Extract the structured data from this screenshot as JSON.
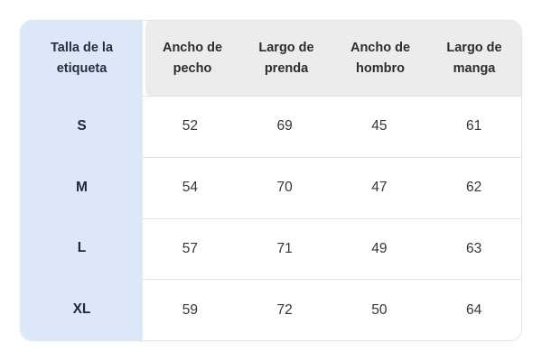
{
  "table": {
    "corner_header": "Talla de la etiqueta",
    "column_headers": [
      "Ancho de pecho",
      "Largo de prenda",
      "Ancho de hombro",
      "Largo de manga"
    ],
    "rows": [
      {
        "size": "S",
        "values": [
          52,
          69,
          45,
          61
        ]
      },
      {
        "size": "M",
        "values": [
          54,
          70,
          47,
          62
        ]
      },
      {
        "size": "L",
        "values": [
          57,
          71,
          49,
          63
        ]
      },
      {
        "size": "XL",
        "values": [
          59,
          72,
          50,
          64
        ]
      }
    ]
  },
  "colors": {
    "size_column_bg": "#dce8f8",
    "header_bg": "#ececec",
    "divider": "#e2e2e2",
    "card_border": "#e4e4e4",
    "size_label_text": "#1c2a3a",
    "header_text": "#2d2d2d",
    "value_text": "#363636",
    "page_bg": "#ffffff"
  },
  "chart_data": {
    "type": "table",
    "columns": [
      "Talla de la etiqueta",
      "Ancho de pecho",
      "Largo de prenda",
      "Ancho de hombro",
      "Largo de manga"
    ],
    "rows": [
      [
        "S",
        52,
        69,
        45,
        61
      ],
      [
        "M",
        54,
        70,
        47,
        62
      ],
      [
        "L",
        57,
        71,
        49,
        63
      ],
      [
        "XL",
        59,
        72,
        50,
        64
      ]
    ]
  }
}
